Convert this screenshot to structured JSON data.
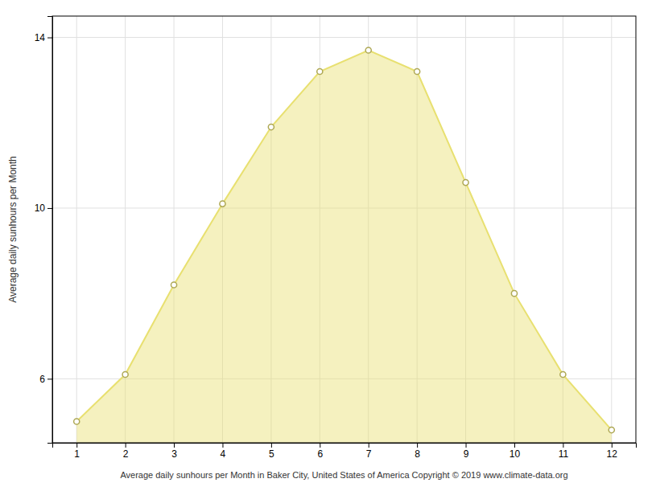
{
  "chart_data": {
    "type": "area",
    "x": [
      1,
      2,
      3,
      4,
      5,
      6,
      7,
      8,
      9,
      10,
      11,
      12
    ],
    "values": [
      5.0,
      6.1,
      8.2,
      10.1,
      11.9,
      13.2,
      13.7,
      13.2,
      10.6,
      8.0,
      6.1,
      4.8
    ],
    "color": "#E8E070",
    "marker": "circle",
    "xlabel": "Average daily sunhours per Month in Baker City, United States of America Copyright © 2019 www.climate-data.org",
    "ylabel": "Average daily sunhours per Month",
    "xlim": [
      0.5,
      12.5
    ],
    "ylim": [
      4.5,
      14.5
    ],
    "xticks": [
      1,
      2,
      3,
      4,
      5,
      6,
      7,
      8,
      9,
      10,
      11,
      12
    ],
    "yticks": [
      6,
      10,
      14
    ],
    "grid": true
  }
}
